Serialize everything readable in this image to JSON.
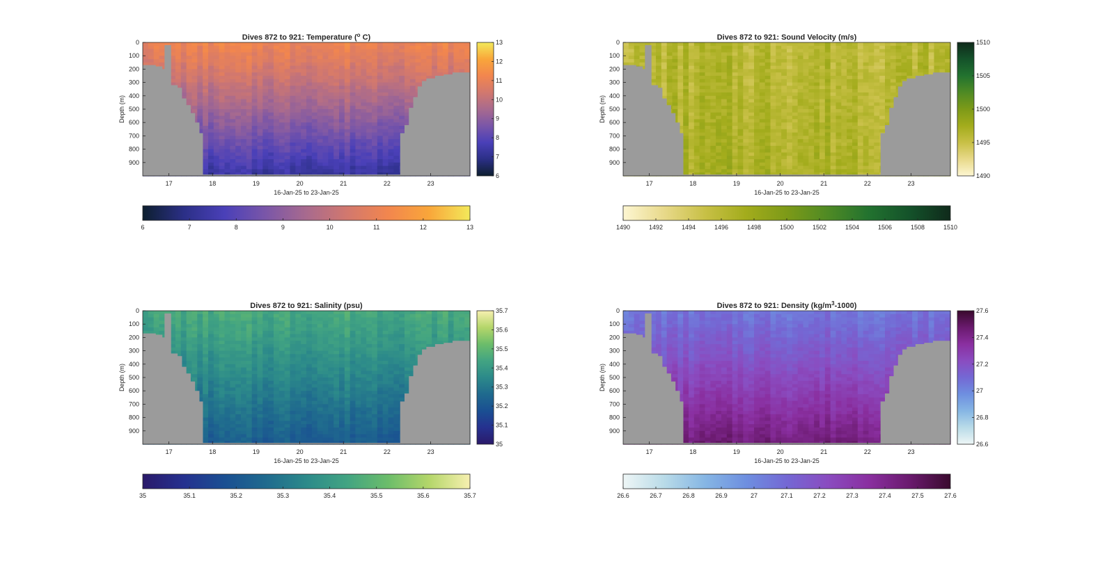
{
  "chart_data": [
    {
      "type": "heatmap",
      "title": "Dives 872 to 921: Temperature (",
      "title_sup": "o",
      "title_tail": " C)",
      "xlabel": "16-Jan-25 to 23-Jan-25",
      "ylabel": "Depth (m)",
      "xlim": [
        16.4,
        23.9
      ],
      "ylim": [
        0,
        1000
      ],
      "x_ticks": [
        17,
        18,
        19,
        20,
        21,
        22,
        23
      ],
      "y_ticks": [
        0,
        100,
        200,
        300,
        400,
        500,
        600,
        700,
        800,
        900
      ],
      "y_reversed": true,
      "clim": [
        6,
        13
      ],
      "colorbar_ticks": [
        6,
        7,
        8,
        9,
        10,
        11,
        12,
        13
      ],
      "h_colorbar_ticks": [
        6,
        7,
        8,
        9,
        10,
        11,
        12,
        13
      ],
      "colormap": [
        "#0d1f2f",
        "#2b2f86",
        "#4a40b8",
        "#7a56a8",
        "#a86a8e",
        "#d2786e",
        "#f2864e",
        "#f9a63a",
        "#f3e95a"
      ],
      "surface_value": 11.1,
      "deep_value": 7.3,
      "bathymetry_color": "#9b9b9b"
    },
    {
      "type": "heatmap",
      "title": "Dives 872 to 921: Sound Velocity (m/s)",
      "xlabel": "16-Jan-25 to 23-Jan-25",
      "ylabel": "Depth (m)",
      "xlim": [
        16.4,
        23.9
      ],
      "ylim": [
        0,
        1000
      ],
      "x_ticks": [
        17,
        18,
        19,
        20,
        21,
        22,
        23
      ],
      "y_ticks": [
        0,
        100,
        200,
        300,
        400,
        500,
        600,
        700,
        800,
        900
      ],
      "y_reversed": true,
      "clim": [
        1490,
        1510
      ],
      "colorbar_ticks": [
        1490,
        1495,
        1500,
        1505,
        1510
      ],
      "h_colorbar_ticks": [
        1490,
        1492,
        1494,
        1496,
        1498,
        1500,
        1502,
        1504,
        1506,
        1508,
        1510
      ],
      "colormap": [
        "#fdf6d2",
        "#e8d98a",
        "#c8c046",
        "#a3ac1c",
        "#7d9a18",
        "#4f8a24",
        "#22722f",
        "#14522a",
        "#0f2a1b"
      ],
      "surface_value": 1496,
      "deep_value": 1497,
      "bathymetry_color": "#9b9b9b"
    },
    {
      "type": "heatmap",
      "title": "Dives 872 to 921: Salinity (psu)",
      "xlabel": "16-Jan-25 to 23-Jan-25",
      "ylabel": "Depth (m)",
      "xlim": [
        16.4,
        23.9
      ],
      "ylim": [
        0,
        1000
      ],
      "x_ticks": [
        17,
        18,
        19,
        20,
        21,
        22,
        23
      ],
      "y_ticks": [
        0,
        100,
        200,
        300,
        400,
        500,
        600,
        700,
        800,
        900
      ],
      "y_reversed": true,
      "clim": [
        35,
        35.7
      ],
      "colorbar_ticks": [
        35,
        35.1,
        35.2,
        35.3,
        35.4,
        35.5,
        35.6,
        35.7
      ],
      "h_colorbar_ticks": [
        35,
        35.1,
        35.2,
        35.3,
        35.4,
        35.5,
        35.6,
        35.7
      ],
      "colormap": [
        "#2a1a6a",
        "#25318f",
        "#1a4f92",
        "#1f6a8e",
        "#2c8a8a",
        "#42a482",
        "#6cbd6a",
        "#b4d66a",
        "#f7f0b0"
      ],
      "surface_value": 35.45,
      "deep_value": 35.22,
      "bathymetry_color": "#9b9b9b"
    },
    {
      "type": "heatmap",
      "title": "Dives 872 to 921: Density (kg/m",
      "title_sup": "3",
      "title_tail": "-1000)",
      "xlabel": "16-Jan-25 to 23-Jan-25",
      "ylabel": "Depth (m)",
      "xlim": [
        16.4,
        23.9
      ],
      "ylim": [
        0,
        1000
      ],
      "x_ticks": [
        17,
        18,
        19,
        20,
        21,
        22,
        23
      ],
      "y_ticks": [
        0,
        100,
        200,
        300,
        400,
        500,
        600,
        700,
        800,
        900
      ],
      "y_reversed": true,
      "clim": [
        26.6,
        27.6
      ],
      "colorbar_ticks": [
        26.6,
        26.8,
        27,
        27.2,
        27.4,
        27.6
      ],
      "h_colorbar_ticks": [
        26.6,
        26.7,
        26.8,
        26.9,
        27,
        27.1,
        27.2,
        27.3,
        27.4,
        27.5,
        27.6
      ],
      "colormap": [
        "#eef6f6",
        "#b9dbe8",
        "#86b6e4",
        "#6e8fe0",
        "#7468d4",
        "#8a4cc0",
        "#8a2fa0",
        "#6a1a6e",
        "#3a0a2e"
      ],
      "surface_value": 27.06,
      "deep_value": 27.45,
      "bathymetry_color": "#9b9b9b"
    }
  ]
}
